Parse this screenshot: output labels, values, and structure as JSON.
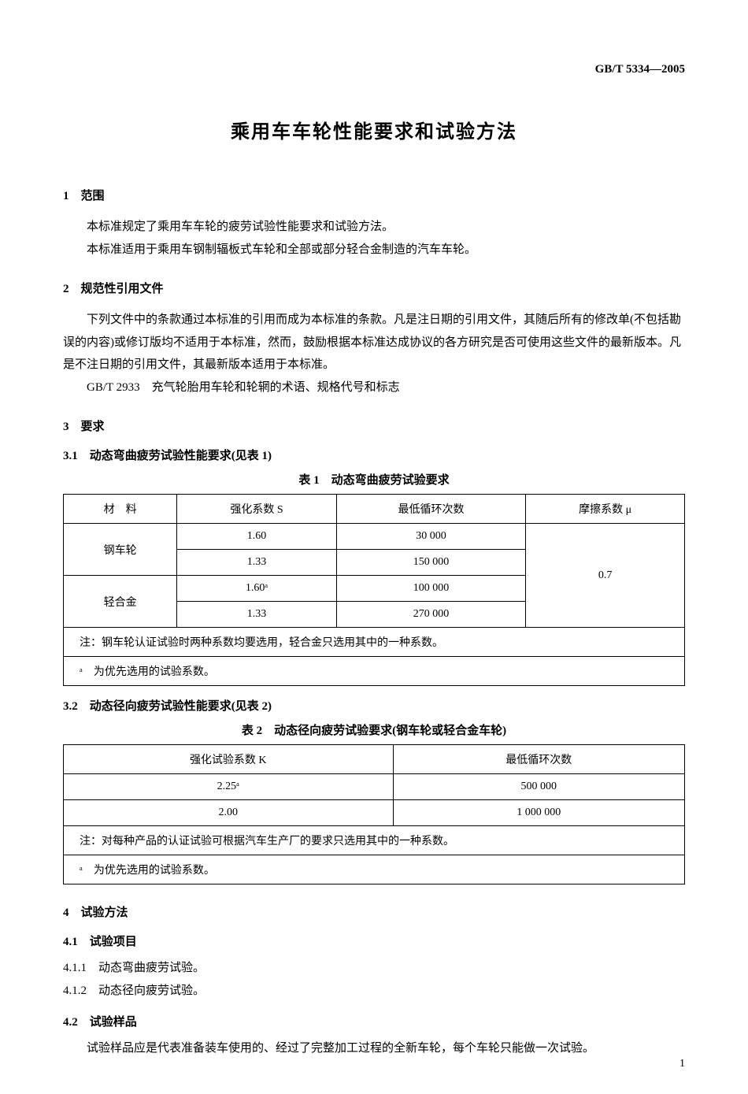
{
  "header_code": "GB/T 5334—2005",
  "title": "乘用车车轮性能要求和试验方法",
  "s1": {
    "heading": "1　范围",
    "p1": "本标准规定了乘用车车轮的疲劳试验性能要求和试验方法。",
    "p2": "本标准适用于乘用车钢制辐板式车轮和全部或部分轻合金制造的汽车车轮。"
  },
  "s2": {
    "heading": "2　规范性引用文件",
    "p1": "下列文件中的条款通过本标准的引用而成为本标准的条款。凡是注日期的引用文件，其随后所有的修改单(不包括勘误的内容)或修订版均不适用于本标准，然而，鼓励根据本标准达成协议的各方研究是否可使用这些文件的最新版本。凡是不注日期的引用文件，其最新版本适用于本标准。",
    "p2": "GB/T 2933　充气轮胎用车轮和轮辋的术语、规格代号和标志"
  },
  "s3": {
    "heading": "3　要求",
    "sub1": {
      "heading": "3.1　动态弯曲疲劳试验性能要求(见表 1)",
      "caption": "表 1　动态弯曲疲劳试验要求",
      "cols": [
        "材　料",
        "强化系数 S",
        "最低循环次数",
        "摩擦系数 μ"
      ],
      "rows": [
        {
          "mat": "钢车轮",
          "s": "1.60",
          "cycles": "30 000"
        },
        {
          "mat": "",
          "s": "1.33",
          "cycles": "150 000"
        },
        {
          "mat": "轻合金",
          "s": "1.60ᵃ",
          "cycles": "100 000"
        },
        {
          "mat": "",
          "s": "1.33",
          "cycles": "270 000"
        }
      ],
      "mu": "0.7",
      "note": "注：钢车轮认证试验时两种系数均要选用，轻合金只选用其中的一种系数。",
      "footnote": "ᵃ　为优先选用的试验系数。"
    },
    "sub2": {
      "heading": "3.2　动态径向疲劳试验性能要求(见表 2)",
      "caption": "表 2　动态径向疲劳试验要求(钢车轮或轻合金车轮)",
      "cols": [
        "强化试验系数 K",
        "最低循环次数"
      ],
      "rows": [
        {
          "k": "2.25ᵃ",
          "cycles": "500 000"
        },
        {
          "k": "2.00",
          "cycles": "1 000 000"
        }
      ],
      "note": "注：对每种产品的认证试验可根据汽车生产厂的要求只选用其中的一种系数。",
      "footnote": "ᵃ　为优先选用的试验系数。"
    }
  },
  "s4": {
    "heading": "4　试验方法",
    "sub1": {
      "heading": "4.1　试验项目",
      "item1": "4.1.1　动态弯曲疲劳试验。",
      "item2": "4.1.2　动态径向疲劳试验。"
    },
    "sub2": {
      "heading": "4.2　试验样品",
      "p1": "试验样品应是代表准备装车使用的、经过了完整加工过程的全新车轮，每个车轮只能做一次试验。"
    }
  },
  "page_number": "1"
}
